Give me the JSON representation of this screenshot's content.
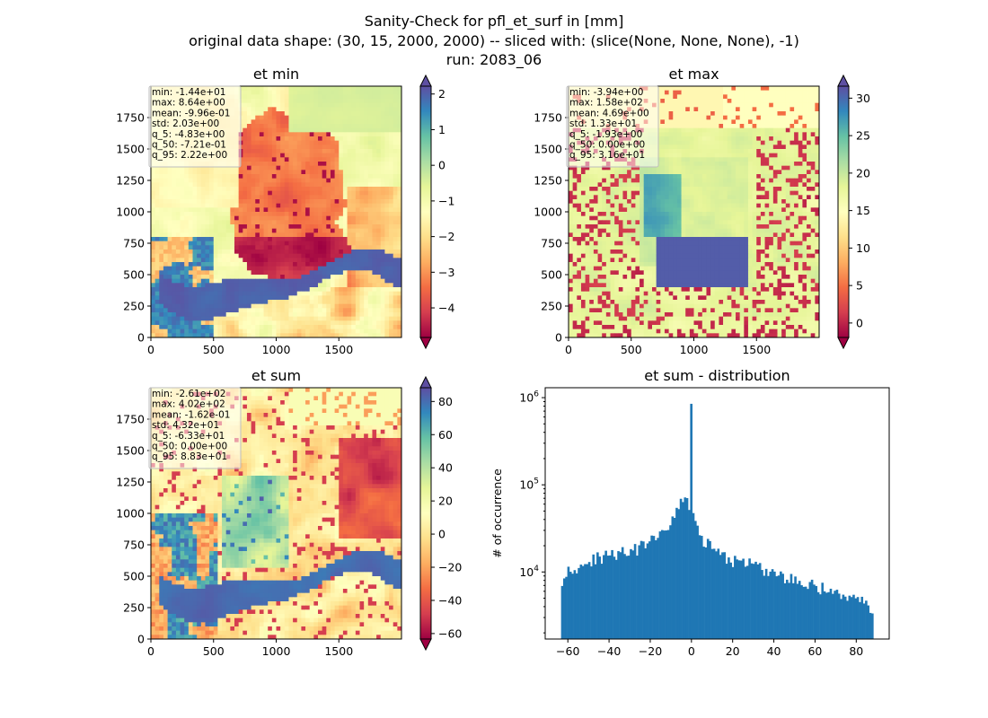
{
  "figure": {
    "title_lines": [
      "Sanity-Check for pfl_et_surf in [mm]",
      "original data shape: (30, 15, 2000, 2000) -- sliced with: (slice(None, None, None), -1)",
      "run: 2083_06"
    ]
  },
  "chart_data": [
    {
      "type": "heatmap",
      "title": "et min",
      "colormap": "Spectral",
      "xlim": [
        0,
        2000
      ],
      "ylim": [
        0,
        2000
      ],
      "x_ticks": [
        0,
        500,
        1000,
        1500
      ],
      "y_ticks": [
        0,
        250,
        500,
        750,
        1000,
        1250,
        1500,
        1750
      ],
      "colorbar": {
        "vmin": -4.83,
        "vmax": 2.22,
        "ticks": [
          2,
          1,
          0,
          -1,
          -2,
          -3,
          -4
        ]
      },
      "stats": [
        "min: -1.44e+01",
        "max: 8.64e+00",
        "mean: -9.96e-01",
        "std: 2.03e+00",
        "q_5: -4.83e+00",
        "q_50: -7.21e-01",
        "q_95: 2.22e+00"
      ]
    },
    {
      "type": "heatmap",
      "title": "et max",
      "colormap": "Spectral",
      "xlim": [
        0,
        2000
      ],
      "ylim": [
        0,
        2000
      ],
      "x_ticks": [
        0,
        500,
        1000,
        1500
      ],
      "y_ticks": [
        0,
        250,
        500,
        750,
        1000,
        1250,
        1500,
        1750
      ],
      "colorbar": {
        "vmin": -1.93,
        "vmax": 31.6,
        "ticks": [
          30,
          25,
          20,
          15,
          10,
          5,
          0
        ]
      },
      "stats": [
        "min: -3.94e+00",
        "max: 1.58e+02",
        "mean: 4.69e+00",
        "std: 1.33e+01",
        "q_5: -1.93e+00",
        "q_50: 0.00e+00",
        "q_95: 3.16e+01"
      ]
    },
    {
      "type": "heatmap",
      "title": "et sum",
      "colormap": "Spectral",
      "xlim": [
        0,
        2000
      ],
      "ylim": [
        0,
        2000
      ],
      "x_ticks": [
        0,
        500,
        1000,
        1500
      ],
      "y_ticks": [
        0,
        250,
        500,
        750,
        1000,
        1250,
        1500,
        1750
      ],
      "colorbar": {
        "vmin": -63.3,
        "vmax": 88.3,
        "ticks": [
          80,
          60,
          40,
          20,
          0,
          -20,
          -40,
          -60
        ]
      },
      "stats": [
        "min: -2.61e+02",
        "max: 4.02e+02",
        "mean: -1.62e-01",
        "std: 4.32e+01",
        "q_5: -6.33e+01",
        "q_50: 0.00e+00",
        "q_95: 8.83e+01"
      ]
    },
    {
      "type": "bar",
      "title": "et sum - distribution",
      "ylabel": "# of occurrence",
      "xlabel": "",
      "y_scale": "log",
      "xlim": [
        -71,
        96
      ],
      "ylim": [
        1700,
        1300000
      ],
      "x_ticks": [
        -60,
        -40,
        -20,
        0,
        20,
        40,
        60,
        80
      ],
      "y_tick_labels": [
        {
          "base": "10",
          "exp": "4",
          "value": 10000
        },
        {
          "base": "10",
          "exp": "5",
          "value": 100000
        },
        {
          "base": "10",
          "exp": "6",
          "value": 1000000
        }
      ],
      "bar_color": "#1f77b4",
      "anchors": [
        [
          -63.3,
          7800
        ],
        [
          -61,
          10500
        ],
        [
          -55,
          11500
        ],
        [
          -50,
          13000
        ],
        [
          -45,
          14500
        ],
        [
          -40,
          16000
        ],
        [
          -35,
          16500
        ],
        [
          -30,
          17000
        ],
        [
          -25,
          19000
        ],
        [
          -20,
          22000
        ],
        [
          -15,
          27000
        ],
        [
          -10,
          37000
        ],
        [
          -5,
          60000
        ],
        [
          -2,
          70000
        ],
        [
          -1,
          55000
        ],
        [
          -0.3,
          850000
        ],
        [
          0.5,
          65000
        ],
        [
          1,
          40000
        ],
        [
          3,
          30000
        ],
        [
          5,
          24000
        ],
        [
          10,
          19000
        ],
        [
          15,
          15000
        ],
        [
          20,
          13500
        ],
        [
          30,
          12000
        ],
        [
          40,
          9500
        ],
        [
          50,
          8000
        ],
        [
          60,
          7000
        ],
        [
          70,
          5800
        ],
        [
          80,
          4800
        ],
        [
          88.3,
          3800
        ]
      ]
    }
  ]
}
